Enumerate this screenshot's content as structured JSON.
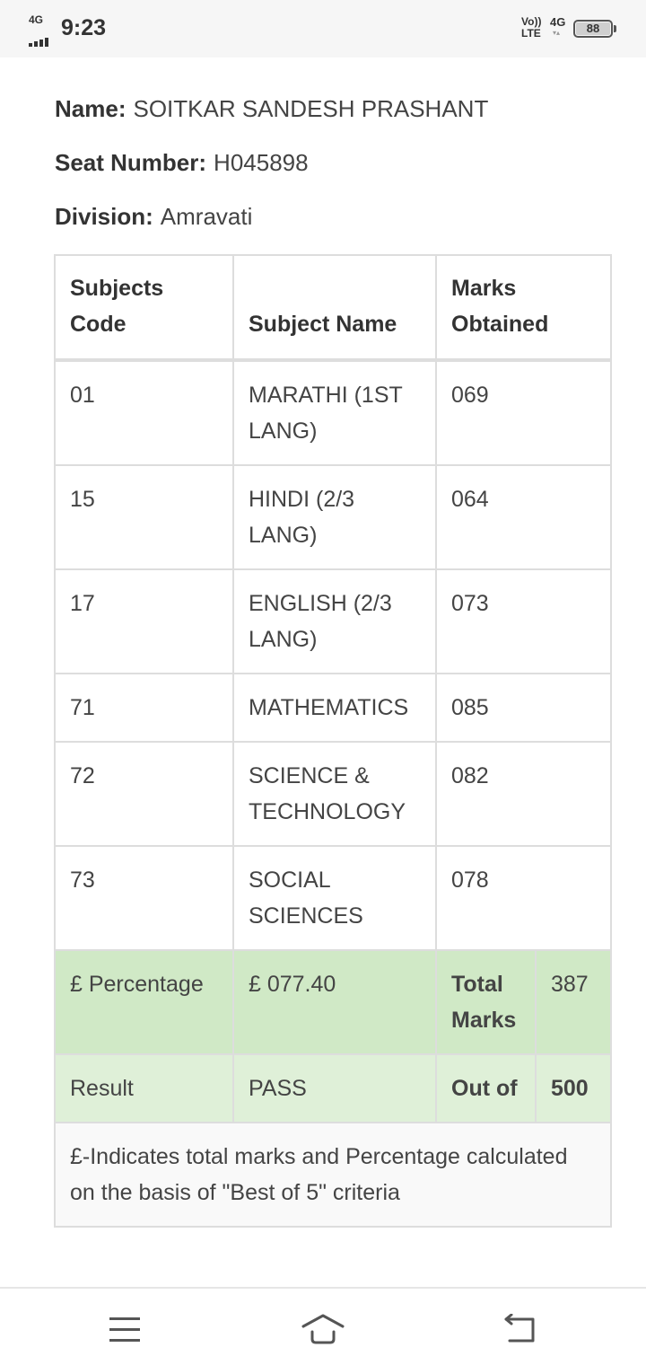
{
  "status_bar": {
    "network": "4G",
    "time": "9:23",
    "volte_top": "Vo))",
    "volte_bottom": "LTE",
    "network_right": "4G",
    "battery": "88"
  },
  "student": {
    "name_label": "Name:",
    "name": "SOITKAR SANDESH PRASHANT",
    "seat_label": "Seat Number:",
    "seat": "H045898",
    "division_label": "Division:",
    "division": "Amravati"
  },
  "table": {
    "headers": [
      "Subjects Code",
      "Subject Name",
      "Marks Obtained"
    ],
    "rows": [
      {
        "code": "01",
        "name": "MARATHI (1ST LANG)",
        "marks": "069"
      },
      {
        "code": "15",
        "name": "HINDI (2/3 LANG)",
        "marks": "064"
      },
      {
        "code": "17",
        "name": "ENGLISH (2/3 LANG)",
        "marks": "073"
      },
      {
        "code": "71",
        "name": "MATHEMATICS",
        "marks": "085"
      },
      {
        "code": "72",
        "name": "SCIENCE & TECHNOLOGY",
        "marks": "082"
      },
      {
        "code": "73",
        "name": "SOCIAL SCIENCES",
        "marks": "078"
      }
    ],
    "percentage_label": "£ Percentage",
    "percentage_value": "£ 077.40",
    "total_label": "Total Marks",
    "total_value": "387",
    "result_label": "Result",
    "result_value": "PASS",
    "out_of_label": "Out of",
    "out_of_value": "500",
    "note": "£-Indicates total marks and Percentage calculated on the basis of \"Best of 5\" criteria"
  },
  "nav": {
    "icons": [
      "menu-icon",
      "home-icon",
      "back-icon"
    ]
  }
}
